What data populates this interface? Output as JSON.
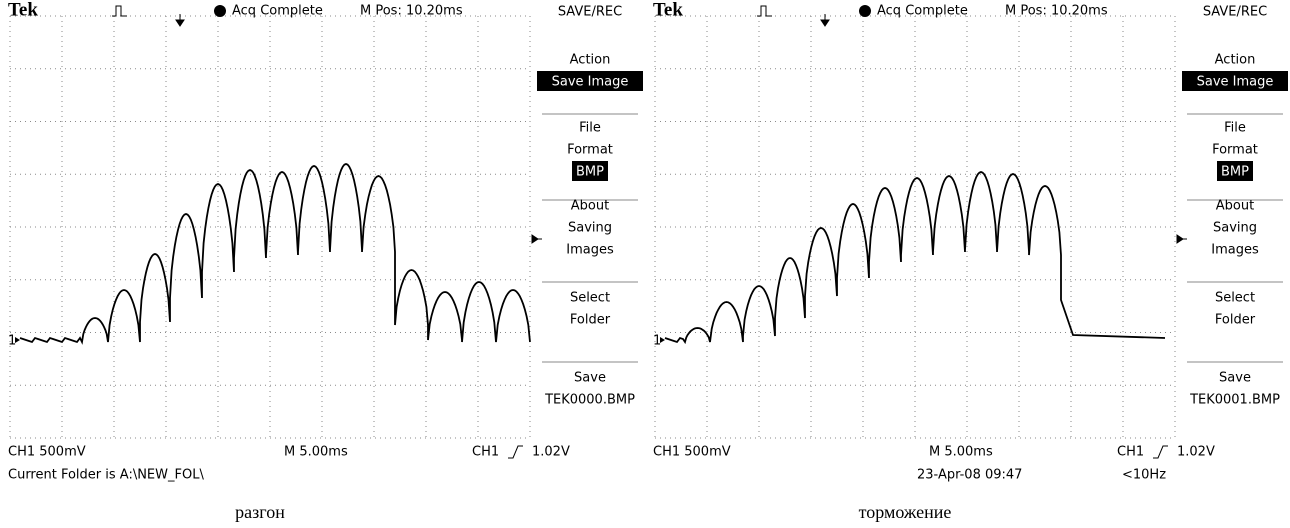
{
  "panels": [
    {
      "header": {
        "brand": "Tek",
        "status": "Acq Complete",
        "position": "M Pos: 10.20ms"
      },
      "menu": {
        "title": "SAVE/REC",
        "items": [
          {
            "lines": [
              "Action"
            ],
            "highlight": "Save Image"
          },
          {
            "lines": [
              "File",
              "Format"
            ],
            "highlight": "BMP"
          },
          {
            "lines": [
              "About",
              "Saving",
              "Images"
            ]
          },
          {
            "lines": [
              "Select",
              "Folder"
            ]
          },
          {
            "lines": [
              "Save",
              "TEK0000.BMP"
            ]
          }
        ]
      },
      "channel_marker": "1",
      "footer": {
        "channel": "CH1  500mV",
        "timebase": "M 5.00ms",
        "trigger_source": "CH1",
        "trigger_level": "1.02V",
        "note": "Current Folder is A:\\NEW_FOL\\"
      },
      "caption": "разгон"
    },
    {
      "header": {
        "brand": "Tek",
        "status": "Acq Complete",
        "position": "M Pos: 10.20ms"
      },
      "menu": {
        "title": "SAVE/REC",
        "items": [
          {
            "lines": [
              "Action"
            ],
            "highlight": "Save Image"
          },
          {
            "lines": [
              "File",
              "Format"
            ],
            "highlight": "BMP"
          },
          {
            "lines": [
              "About",
              "Saving",
              "Images"
            ]
          },
          {
            "lines": [
              "Select",
              "Folder"
            ]
          },
          {
            "lines": [
              "Save",
              "TEK0001.BMP"
            ]
          }
        ]
      },
      "channel_marker": "1",
      "footer": {
        "channel": "CH1  500mV",
        "timebase": "M 5.00ms",
        "trigger_source": "CH1",
        "trigger_level": "1.02V",
        "date": "23-Apr-08 09:47",
        "frequency": "<10Hz"
      },
      "caption": "торможение"
    }
  ]
}
